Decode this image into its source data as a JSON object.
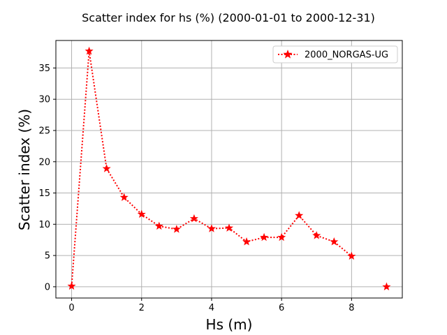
{
  "chart_data": {
    "type": "line",
    "title": "Scatter index for hs (%) (2000-01-01 to 2000-12-31)",
    "xlabel": "Hs (m)",
    "ylabel": "Scatter index (%)",
    "xlim": [
      -0.45,
      9.45
    ],
    "ylim": [
      -1.8,
      39.4
    ],
    "xticks": [
      0,
      2,
      4,
      6,
      8
    ],
    "yticks": [
      0,
      5,
      10,
      15,
      20,
      25,
      30,
      35
    ],
    "grid": true,
    "legend_position": "top-right",
    "series": [
      {
        "name": "2000_NORGAS-UG",
        "color": "#ff0000",
        "line_style": "dotted",
        "marker": "star",
        "points": [
          {
            "x": 0,
            "y": 0.1
          },
          {
            "x": 0.5,
            "y": 37.7
          },
          {
            "x": 1,
            "y": 18.9
          },
          {
            "x": 1.5,
            "y": 14.3
          },
          {
            "x": 2,
            "y": 11.6
          },
          {
            "x": 2.5,
            "y": 9.7
          },
          {
            "x": 3,
            "y": 9.2
          },
          {
            "x": 3.5,
            "y": 10.9
          },
          {
            "x": 4,
            "y": 9.3
          },
          {
            "x": 4.5,
            "y": 9.4
          },
          {
            "x": 5,
            "y": 7.2
          },
          {
            "x": 5.5,
            "y": 7.9
          },
          {
            "x": 6,
            "y": 7.9
          },
          {
            "x": 6.5,
            "y": 11.4
          },
          {
            "x": 7,
            "y": 8.2
          },
          {
            "x": 7.5,
            "y": 7.2
          },
          {
            "x": 8,
            "y": 4.9
          }
        ],
        "isolated_points": [
          {
            "x": 9,
            "y": 0.0
          }
        ]
      }
    ]
  }
}
